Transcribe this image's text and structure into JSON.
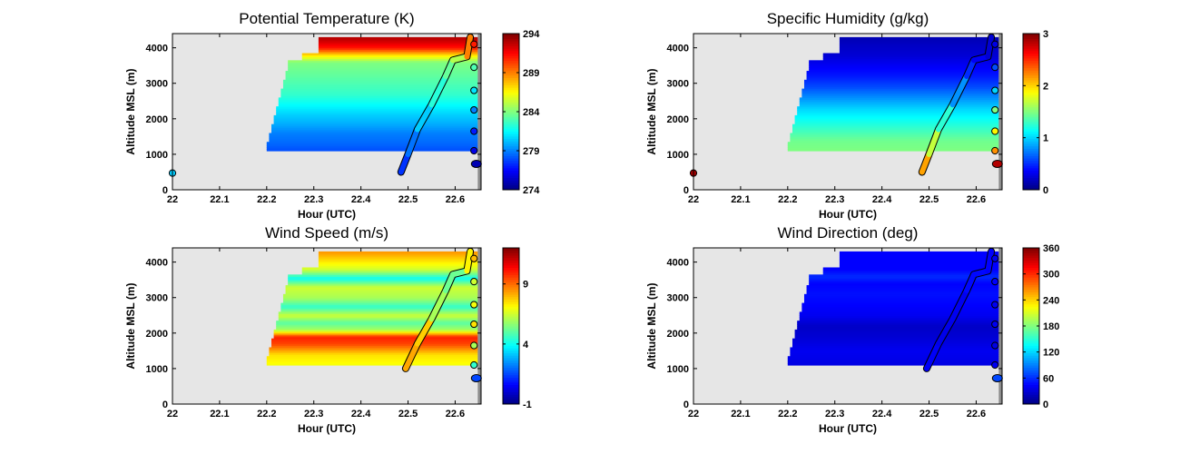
{
  "chart_data": [
    {
      "type": "heatmap",
      "title": "Potential Temperature (K)",
      "xlabel": "Hour (UTC)",
      "ylabel": "Altitude MSL (m)",
      "xlim": [
        22,
        22.655
      ],
      "ylim": [
        0,
        4400
      ],
      "xticks": [
        "22",
        "22.1",
        "22.2",
        "22.3",
        "22.4",
        "22.5",
        "22.6"
      ],
      "yticks": [
        "0",
        "1000",
        "2000",
        "3000",
        "4000"
      ],
      "colorbar": {
        "range": [
          274,
          294
        ],
        "ticks": [
          "274",
          "279",
          "284",
          "289",
          "294"
        ]
      },
      "profile": [
        {
          "alt": 1100,
          "value": 278
        },
        {
          "alt": 1300,
          "value": 278.5
        },
        {
          "alt": 1600,
          "value": 279
        },
        {
          "alt": 1900,
          "value": 280
        },
        {
          "alt": 2100,
          "value": 280.5
        },
        {
          "alt": 2400,
          "value": 281.5
        },
        {
          "alt": 2700,
          "value": 282.5
        },
        {
          "alt": 3000,
          "value": 283
        },
        {
          "alt": 3300,
          "value": 283.5
        },
        {
          "alt": 3600,
          "value": 284
        },
        {
          "alt": 3800,
          "value": 287
        },
        {
          "alt": 4000,
          "value": 291
        },
        {
          "alt": 4200,
          "value": 292.5
        },
        {
          "alt": 4300,
          "value": 293
        }
      ],
      "track": [
        {
          "time": 22.485,
          "alt": 500,
          "value": 277
        },
        {
          "time": 22.5,
          "alt": 1000,
          "value": 278
        },
        {
          "time": 22.52,
          "alt": 1700,
          "value": 279.5
        },
        {
          "time": 22.55,
          "alt": 2400,
          "value": 281.5
        },
        {
          "time": 22.58,
          "alt": 3200,
          "value": 283
        },
        {
          "time": 22.595,
          "alt": 3650,
          "value": 284
        },
        {
          "time": 22.625,
          "alt": 3750,
          "value": 286
        },
        {
          "time": 22.632,
          "alt": 4300,
          "value": 292
        }
      ],
      "markers": [
        {
          "time": 22,
          "alt": 470,
          "value": 280.5
        },
        {
          "time": 22.64,
          "alt": 4100,
          "value": 291
        },
        {
          "time": 22.64,
          "alt": 3450,
          "value": 283
        },
        {
          "time": 22.64,
          "alt": 2800,
          "value": 281
        },
        {
          "time": 22.64,
          "alt": 2250,
          "value": 279
        },
        {
          "time": 22.64,
          "alt": 1650,
          "value": 277
        },
        {
          "time": 22.64,
          "alt": 1100,
          "value": 276
        },
        {
          "time": 22.645,
          "alt": 730,
          "value": 275
        }
      ]
    },
    {
      "type": "heatmap",
      "title": "Specific Humidity (g/kg)",
      "xlabel": "Hour (UTC)",
      "ylabel": "Altitude MSL (m)",
      "xlim": [
        22,
        22.655
      ],
      "ylim": [
        0,
        4400
      ],
      "xticks": [
        "22",
        "22.1",
        "22.2",
        "22.3",
        "22.4",
        "22.5",
        "22.6"
      ],
      "yticks": [
        "0",
        "1000",
        "2000",
        "3000",
        "4000"
      ],
      "colorbar": {
        "range": [
          0,
          3
        ],
        "ticks": [
          "0",
          "1",
          "2",
          "3"
        ]
      },
      "profile": [
        {
          "alt": 1100,
          "value": 1.5
        },
        {
          "alt": 1400,
          "value": 1.45
        },
        {
          "alt": 1700,
          "value": 1.3
        },
        {
          "alt": 2000,
          "value": 1.15
        },
        {
          "alt": 2300,
          "value": 1.0
        },
        {
          "alt": 2600,
          "value": 0.8
        },
        {
          "alt": 2900,
          "value": 0.6
        },
        {
          "alt": 3200,
          "value": 0.45
        },
        {
          "alt": 3500,
          "value": 0.35
        },
        {
          "alt": 3800,
          "value": 0.25
        },
        {
          "alt": 4100,
          "value": 0.2
        },
        {
          "alt": 4300,
          "value": 0.15
        }
      ],
      "track": [
        {
          "time": 22.485,
          "alt": 500,
          "value": 2.4
        },
        {
          "time": 22.5,
          "alt": 1000,
          "value": 1.9
        },
        {
          "time": 22.52,
          "alt": 1700,
          "value": 1.5
        },
        {
          "time": 22.55,
          "alt": 2400,
          "value": 1.0
        },
        {
          "time": 22.58,
          "alt": 3200,
          "value": 0.6
        },
        {
          "time": 22.595,
          "alt": 3650,
          "value": 0.4
        },
        {
          "time": 22.625,
          "alt": 3750,
          "value": 0.3
        },
        {
          "time": 22.632,
          "alt": 4300,
          "value": 0.2
        }
      ],
      "markers": [
        {
          "time": 22,
          "alt": 470,
          "value": 2.9
        },
        {
          "time": 22.64,
          "alt": 4100,
          "value": 0.3
        },
        {
          "time": 22.64,
          "alt": 3450,
          "value": 0.6
        },
        {
          "time": 22.64,
          "alt": 2800,
          "value": 1.0
        },
        {
          "time": 22.64,
          "alt": 2250,
          "value": 1.5
        },
        {
          "time": 22.64,
          "alt": 1650,
          "value": 1.9
        },
        {
          "time": 22.64,
          "alt": 1100,
          "value": 2.2
        },
        {
          "time": 22.645,
          "alt": 730,
          "value": 2.85
        }
      ]
    },
    {
      "type": "heatmap",
      "title": "Wind Speed (m/s)",
      "xlabel": "Hour (UTC)",
      "ylabel": "Altitude MSL (m)",
      "xlim": [
        22,
        22.655
      ],
      "ylim": [
        0,
        4400
      ],
      "xticks": [
        "22",
        "22.1",
        "22.2",
        "22.3",
        "22.4",
        "22.5",
        "22.6"
      ],
      "yticks": [
        "0",
        "1000",
        "2000",
        "3000",
        "4000"
      ],
      "colorbar": {
        "range": [
          -1,
          12
        ],
        "ticks": [
          "-1",
          "4",
          "9"
        ]
      },
      "profile": [
        {
          "alt": 1100,
          "value": 7
        },
        {
          "alt": 1400,
          "value": 7.5
        },
        {
          "alt": 1700,
          "value": 9.5
        },
        {
          "alt": 1900,
          "value": 10
        },
        {
          "alt": 2100,
          "value": 6
        },
        {
          "alt": 2300,
          "value": 5
        },
        {
          "alt": 2500,
          "value": 6.5
        },
        {
          "alt": 2750,
          "value": 4.5
        },
        {
          "alt": 3000,
          "value": 6
        },
        {
          "alt": 3300,
          "value": 6.5
        },
        {
          "alt": 3550,
          "value": 4
        },
        {
          "alt": 3800,
          "value": 6.5
        },
        {
          "alt": 4050,
          "value": 7.5
        },
        {
          "alt": 4300,
          "value": 8.5
        }
      ],
      "track": [
        {
          "time": 22.495,
          "alt": 1000,
          "value": 7
        },
        {
          "time": 22.52,
          "alt": 1700,
          "value": 9.5
        },
        {
          "time": 22.55,
          "alt": 2400,
          "value": 6
        },
        {
          "time": 22.58,
          "alt": 3200,
          "value": 6
        },
        {
          "time": 22.595,
          "alt": 3650,
          "value": 4.5
        },
        {
          "time": 22.625,
          "alt": 3750,
          "value": 6
        },
        {
          "time": 22.632,
          "alt": 4300,
          "value": 8.5
        }
      ],
      "markers": [
        {
          "time": 22.64,
          "alt": 4100,
          "value": 8
        },
        {
          "time": 22.64,
          "alt": 3450,
          "value": 6.5
        },
        {
          "time": 22.64,
          "alt": 2800,
          "value": 7
        },
        {
          "time": 22.64,
          "alt": 2250,
          "value": 7.5
        },
        {
          "time": 22.64,
          "alt": 1650,
          "value": 6
        },
        {
          "time": 22.64,
          "alt": 1100,
          "value": 4.5
        },
        {
          "time": 22.645,
          "alt": 730,
          "value": 1.5
        }
      ]
    },
    {
      "type": "heatmap",
      "title": "Wind Direction (deg)",
      "xlabel": "Hour (UTC)",
      "ylabel": "Altitude MSL (m)",
      "xlim": [
        22,
        22.655
      ],
      "ylim": [
        0,
        4400
      ],
      "xticks": [
        "22",
        "22.1",
        "22.2",
        "22.3",
        "22.4",
        "22.5",
        "22.6"
      ],
      "yticks": [
        "0",
        "1000",
        "2000",
        "3000",
        "4000"
      ],
      "colorbar": {
        "range": [
          0,
          360
        ],
        "ticks": [
          "0",
          "60",
          "120",
          "180",
          "240",
          "300",
          "360"
        ]
      },
      "profile": [
        {
          "alt": 1100,
          "value": 35
        },
        {
          "alt": 1500,
          "value": 40
        },
        {
          "alt": 1900,
          "value": 30
        },
        {
          "alt": 2200,
          "value": 25
        },
        {
          "alt": 2500,
          "value": 40
        },
        {
          "alt": 2800,
          "value": 45
        },
        {
          "alt": 3100,
          "value": 50
        },
        {
          "alt": 3400,
          "value": 45
        },
        {
          "alt": 3600,
          "value": 60
        },
        {
          "alt": 3800,
          "value": 45
        },
        {
          "alt": 4100,
          "value": 45
        },
        {
          "alt": 4300,
          "value": 45
        }
      ],
      "track": [
        {
          "time": 22.495,
          "alt": 1000,
          "value": 45
        },
        {
          "time": 22.52,
          "alt": 1700,
          "value": 40
        },
        {
          "time": 22.55,
          "alt": 2400,
          "value": 35
        },
        {
          "time": 22.58,
          "alt": 3200,
          "value": 45
        },
        {
          "time": 22.595,
          "alt": 3650,
          "value": 50
        },
        {
          "time": 22.625,
          "alt": 3750,
          "value": 45
        },
        {
          "time": 22.632,
          "alt": 4300,
          "value": 45
        }
      ],
      "markers": [
        {
          "time": 22.64,
          "alt": 4100,
          "value": 40
        },
        {
          "time": 22.64,
          "alt": 3450,
          "value": 45
        },
        {
          "time": 22.64,
          "alt": 2800,
          "value": 40
        },
        {
          "time": 22.64,
          "alt": 2250,
          "value": 40
        },
        {
          "time": 22.64,
          "alt": 1650,
          "value": 35
        },
        {
          "time": 22.64,
          "alt": 1100,
          "value": 40
        },
        {
          "time": 22.645,
          "alt": 730,
          "value": 70
        }
      ]
    }
  ]
}
